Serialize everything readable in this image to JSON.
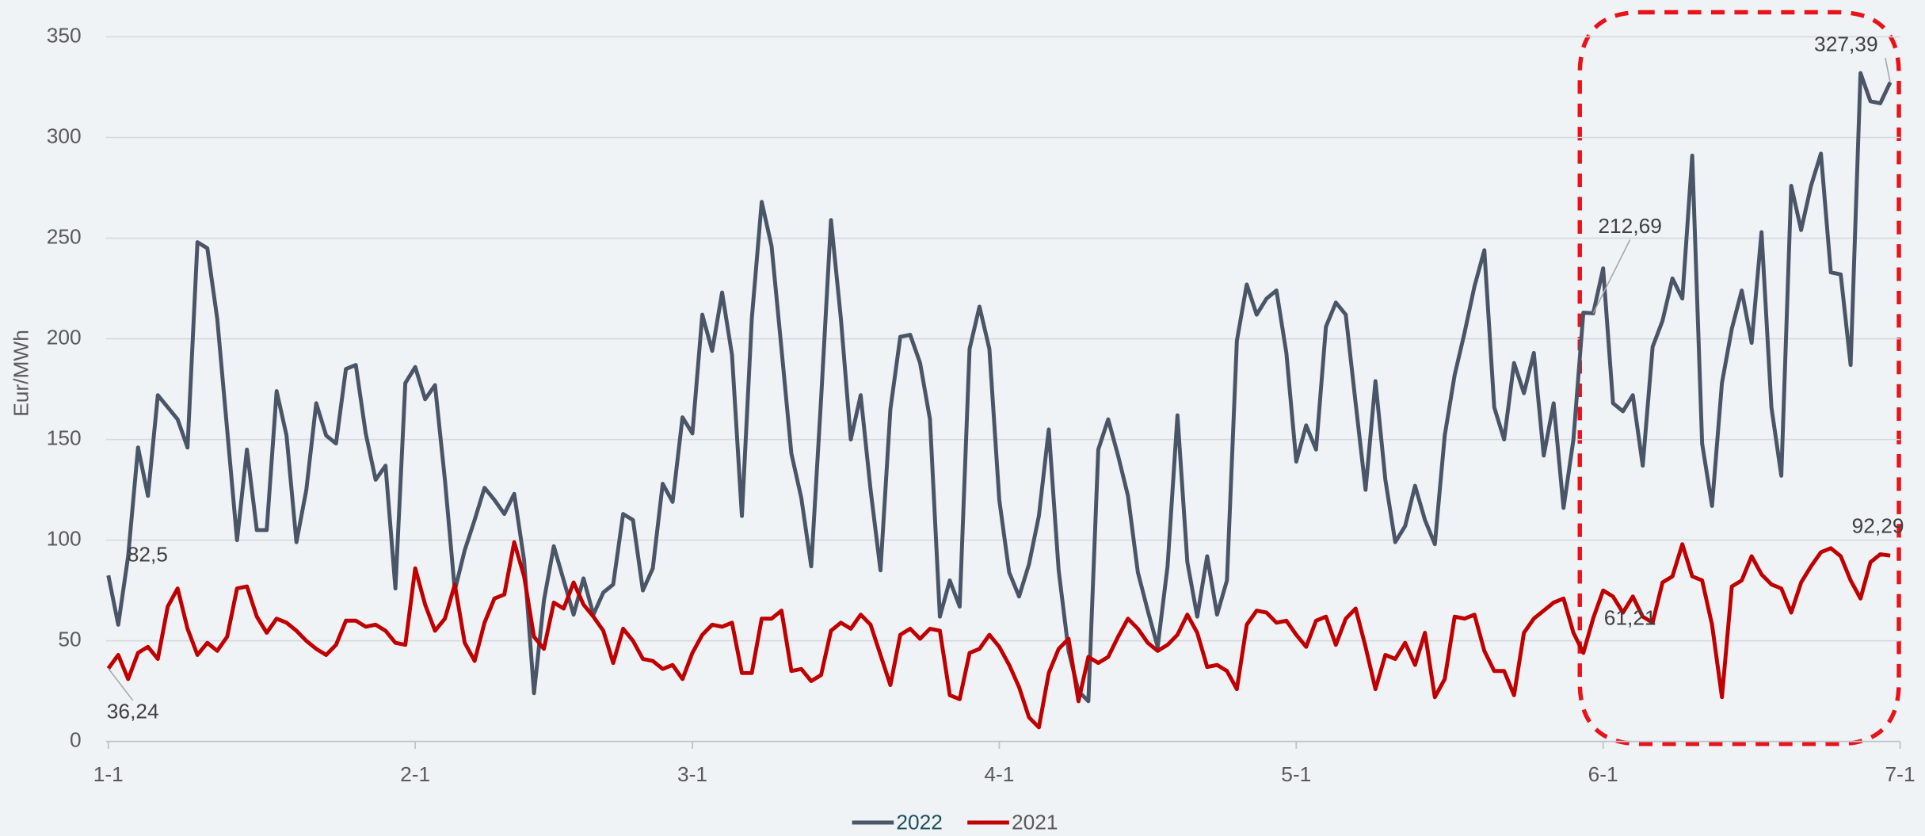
{
  "chart_data": {
    "type": "line",
    "y_label": "Eur/MWh",
    "categories": [
      "1-1",
      null,
      null,
      null,
      null,
      null,
      null,
      null,
      null,
      null,
      null,
      null,
      null,
      null,
      null,
      null,
      null,
      null,
      null,
      null,
      null,
      null,
      null,
      null,
      null,
      null,
      null,
      null,
      null,
      null,
      null,
      "2-1",
      null,
      null,
      null,
      null,
      null,
      null,
      null,
      null,
      null,
      null,
      null,
      null,
      null,
      null,
      null,
      null,
      null,
      null,
      null,
      null,
      null,
      null,
      null,
      null,
      null,
      null,
      null,
      "3-1",
      null,
      null,
      null,
      null,
      null,
      null,
      null,
      null,
      null,
      null,
      null,
      null,
      null,
      null,
      null,
      null,
      null,
      null,
      null,
      null,
      null,
      null,
      null,
      null,
      null,
      null,
      null,
      null,
      null,
      null,
      "4-1",
      null,
      null,
      null,
      null,
      null,
      null,
      null,
      null,
      null,
      null,
      null,
      null,
      null,
      null,
      null,
      null,
      null,
      null,
      null,
      null,
      null,
      null,
      null,
      null,
      null,
      null,
      null,
      null,
      null,
      "5-1",
      null,
      null,
      null,
      null,
      null,
      null,
      null,
      null,
      null,
      null,
      null,
      null,
      null,
      null,
      null,
      null,
      null,
      null,
      null,
      null,
      null,
      null,
      null,
      null,
      null,
      null,
      null,
      null,
      null,
      null,
      "6-1",
      null,
      null,
      null,
      null,
      null,
      null,
      null,
      null,
      null,
      null,
      null,
      null,
      null,
      null,
      null,
      null,
      null,
      null,
      null,
      null,
      null,
      null,
      null,
      null,
      null,
      null,
      null,
      null,
      null,
      "7-1"
    ],
    "series": [
      {
        "name": "2022",
        "color": "#4a5667",
        "legend_text_color": "#1d4f5c",
        "values": [
          82.5,
          58,
          92,
          146,
          122,
          172,
          166,
          160,
          146,
          248,
          245,
          210,
          155,
          100,
          145,
          105,
          105,
          174,
          152,
          99,
          125,
          168,
          152,
          148,
          185,
          187,
          153,
          130,
          137,
          76,
          178,
          186,
          170,
          177,
          130,
          75,
          95,
          110,
          126,
          120,
          113,
          123,
          90,
          24,
          70,
          97,
          80,
          63,
          81,
          63,
          74,
          78,
          113,
          110,
          75,
          86,
          128,
          119,
          161,
          153,
          212,
          194,
          223,
          192,
          112,
          210,
          268,
          246,
          195,
          143,
          121,
          87,
          170,
          259,
          210,
          150,
          172,
          125,
          85,
          165,
          201,
          202,
          188,
          160,
          62,
          80,
          67,
          195,
          216,
          195,
          120,
          84,
          72,
          88,
          112,
          155,
          85,
          45,
          25,
          20,
          145,
          160,
          142,
          122,
          84,
          65,
          47,
          87,
          162,
          89,
          62,
          92,
          63,
          80,
          199,
          227,
          212,
          220,
          224,
          193,
          139,
          157,
          145,
          206,
          218,
          212,
          168,
          125,
          179,
          130,
          99,
          107,
          127,
          110,
          98,
          152,
          182,
          203,
          226,
          244,
          166,
          150,
          188,
          173,
          193,
          142,
          168,
          116,
          150,
          213,
          212.69,
          235,
          168,
          164,
          172,
          137,
          196,
          209,
          230,
          220,
          291,
          148,
          117,
          178,
          205,
          224,
          198,
          253,
          166,
          132,
          276,
          254,
          276,
          292,
          233,
          232,
          187,
          332,
          318,
          317,
          327.39,
          null
        ],
        "value_labels": [
          "82,5",
          null,
          null,
          null,
          null,
          null,
          null,
          null,
          null,
          null,
          null,
          null,
          null,
          null,
          null,
          null,
          null,
          null,
          null,
          null,
          null,
          null,
          null,
          null,
          null,
          null,
          null,
          null,
          null,
          null,
          null,
          null,
          null,
          null,
          null,
          null,
          null,
          null,
          null,
          null,
          null,
          null,
          null,
          null,
          null,
          null,
          null,
          null,
          null,
          null,
          null,
          null,
          null,
          null,
          null,
          null,
          null,
          null,
          null,
          null,
          null,
          null,
          null,
          null,
          null,
          null,
          null,
          null,
          null,
          null,
          null,
          null,
          null,
          null,
          null,
          null,
          null,
          null,
          null,
          null,
          null,
          null,
          null,
          null,
          null,
          null,
          null,
          null,
          null,
          null,
          null,
          null,
          null,
          null,
          null,
          null,
          null,
          null,
          null,
          null,
          null,
          null,
          null,
          null,
          null,
          null,
          null,
          null,
          null,
          null,
          null,
          null,
          null,
          null,
          null,
          null,
          null,
          null,
          null,
          null,
          null,
          null,
          null,
          null,
          null,
          null,
          null,
          null,
          null,
          null,
          null,
          null,
          null,
          null,
          null,
          null,
          null,
          null,
          null,
          null,
          null,
          null,
          null,
          null,
          null,
          null,
          null,
          null,
          null,
          null,
          "212,69",
          null,
          null,
          null,
          null,
          null,
          null,
          null,
          null,
          null,
          null,
          null,
          null,
          null,
          null,
          null,
          null,
          null,
          null,
          null,
          null,
          null,
          null,
          null,
          null,
          null,
          null,
          null,
          null,
          null,
          "327,39",
          null
        ]
      },
      {
        "name": "2021",
        "color": "#c00000",
        "legend_text_color": "#595959",
        "values": [
          36.24,
          43,
          31,
          44,
          47,
          41,
          67,
          76,
          56,
          43,
          49,
          45,
          52,
          76,
          77,
          62,
          54,
          61,
          59,
          55,
          50,
          46,
          43,
          48,
          60,
          60,
          57,
          58,
          55,
          49,
          48,
          86,
          68,
          55,
          61,
          78,
          49,
          40,
          59,
          71,
          73,
          99,
          82,
          52,
          46,
          69,
          66,
          79,
          68,
          62,
          55,
          39,
          56,
          50,
          41,
          40,
          36,
          38,
          31,
          44,
          53,
          58,
          57,
          59,
          34,
          34,
          61,
          61,
          65,
          35,
          36,
          30,
          33,
          55,
          59,
          56,
          63,
          58,
          43,
          28,
          53,
          56,
          51,
          56,
          55,
          23,
          21,
          44,
          46,
          53,
          47,
          38,
          27,
          12,
          7,
          34,
          46,
          51,
          20,
          42,
          39,
          42,
          52,
          61,
          56,
          49,
          45,
          48,
          53,
          63,
          54,
          37,
          38,
          35,
          26,
          58,
          65,
          64,
          59,
          60,
          53,
          47,
          60,
          62,
          48,
          61,
          66,
          47,
          26,
          43,
          41,
          49,
          38,
          54,
          22,
          31,
          62,
          61,
          63,
          45,
          35,
          35,
          23,
          54,
          61,
          65,
          69,
          71,
          54,
          44,
          61.21,
          75,
          72,
          64,
          72,
          62,
          59,
          79,
          82,
          98,
          82,
          80,
          58,
          22,
          77,
          80,
          92,
          83,
          78,
          76,
          64,
          79,
          87,
          94,
          96,
          92,
          80,
          71,
          89,
          93,
          92.29,
          null
        ],
        "value_labels": [
          "36,24",
          null,
          null,
          null,
          null,
          null,
          null,
          null,
          null,
          null,
          null,
          null,
          null,
          null,
          null,
          null,
          null,
          null,
          null,
          null,
          null,
          null,
          null,
          null,
          null,
          null,
          null,
          null,
          null,
          null,
          null,
          null,
          null,
          null,
          null,
          null,
          null,
          null,
          null,
          null,
          null,
          null,
          null,
          null,
          null,
          null,
          null,
          null,
          null,
          null,
          null,
          null,
          null,
          null,
          null,
          null,
          null,
          null,
          null,
          null,
          null,
          null,
          null,
          null,
          null,
          null,
          null,
          null,
          null,
          null,
          null,
          null,
          null,
          null,
          null,
          null,
          null,
          null,
          null,
          null,
          null,
          null,
          null,
          null,
          null,
          null,
          null,
          null,
          null,
          null,
          null,
          null,
          null,
          null,
          null,
          null,
          null,
          null,
          null,
          null,
          null,
          null,
          null,
          null,
          null,
          null,
          null,
          null,
          null,
          null,
          null,
          null,
          null,
          null,
          null,
          null,
          null,
          null,
          null,
          null,
          null,
          null,
          null,
          null,
          null,
          null,
          null,
          null,
          null,
          null,
          null,
          null,
          null,
          null,
          null,
          null,
          null,
          null,
          null,
          null,
          null,
          null,
          null,
          null,
          null,
          null,
          null,
          null,
          null,
          null,
          "61,21",
          null,
          null,
          null,
          null,
          null,
          null,
          null,
          null,
          null,
          null,
          null,
          null,
          null,
          null,
          null,
          null,
          null,
          null,
          null,
          null,
          null,
          null,
          null,
          null,
          null,
          null,
          null,
          null,
          null,
          "92,29",
          null
        ]
      }
    ],
    "ylim": [
      0,
      350
    ],
    "yticks": [
      0,
      50,
      100,
      150,
      200,
      250,
      300,
      350
    ],
    "grid": true,
    "legend": "bottom"
  }
}
